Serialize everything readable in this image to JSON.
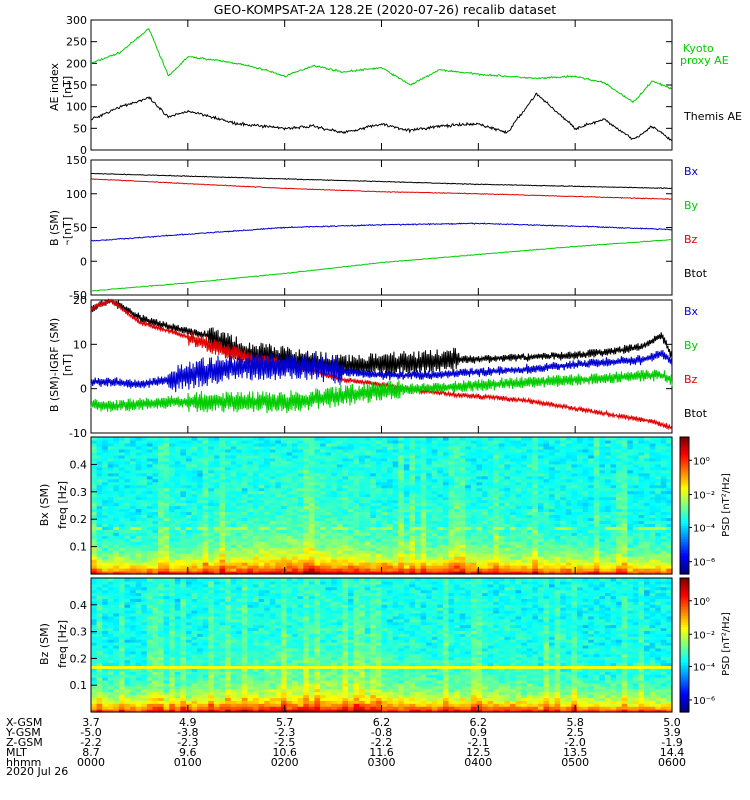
{
  "title": "GEO-KOMPSAT-2A 128.2E (2020-07-26) recalib dataset",
  "colors": {
    "black": "#000000",
    "red": "#e00000",
    "blue": "#0000d0",
    "green": "#00cc00"
  },
  "chart_data": [
    {
      "type": "line",
      "id": "ae",
      "ylabel": "AE index",
      "yunits": "[nT]",
      "ylim": [
        0,
        300
      ],
      "yticks": [
        "0",
        "50",
        "100",
        "150",
        "200",
        "250",
        "300"
      ],
      "legend": [
        "Kyoto",
        "proxy AE",
        "Themis AE"
      ],
      "x_hours": [
        0,
        0.3,
        0.6,
        0.8,
        1.0,
        1.2,
        1.5,
        1.8,
        2.0,
        2.3,
        2.6,
        3.0,
        3.3,
        3.6,
        4.0,
        4.3,
        4.6,
        5.0,
        5.3,
        5.6,
        5.8,
        6.0
      ],
      "series": [
        {
          "name": "Kyoto proxy AE",
          "color": "green",
          "values": [
            200,
            225,
            280,
            170,
            215,
            210,
            200,
            185,
            170,
            195,
            180,
            190,
            150,
            185,
            175,
            170,
            165,
            170,
            155,
            110,
            160,
            140
          ]
        },
        {
          "name": "Themis AE",
          "color": "black",
          "values": [
            70,
            100,
            120,
            75,
            90,
            80,
            60,
            55,
            50,
            55,
            40,
            60,
            45,
            55,
            60,
            40,
            130,
            50,
            70,
            25,
            55,
            20
          ]
        }
      ]
    },
    {
      "type": "line",
      "id": "bsm",
      "ylabel": "B (SM)",
      "ysub": "r",
      "yunits": "[nT]",
      "ylim": [
        -50,
        150
      ],
      "yticks": [
        "-50",
        "0",
        "50",
        "100",
        "150"
      ],
      "legend": [
        "Bx",
        "By",
        "Bz",
        "Btot"
      ],
      "x_hours": [
        0,
        1,
        2,
        3,
        4,
        5,
        6
      ],
      "series": [
        {
          "name": "Btot",
          "color": "black",
          "values": [
            130,
            126,
            122,
            118,
            114,
            111,
            108
          ]
        },
        {
          "name": "Bz",
          "color": "red",
          "values": [
            122,
            115,
            108,
            103,
            100,
            96,
            92
          ]
        },
        {
          "name": "Bx",
          "color": "blue",
          "values": [
            30,
            40,
            50,
            54,
            56,
            52,
            47
          ]
        },
        {
          "name": "By",
          "color": "green",
          "values": [
            -44,
            -32,
            -18,
            -2,
            10,
            22,
            32
          ]
        }
      ]
    },
    {
      "type": "line",
      "id": "bresid",
      "ylabel": "B (SM)-IGRF (SM)",
      "yunits": "[nT]",
      "ylim": [
        -10,
        20
      ],
      "yticks": [
        "-10",
        "0",
        "10",
        "20"
      ],
      "legend": [
        "Bx",
        "By",
        "Bz",
        "Btot"
      ],
      "x_hours": [
        0,
        0.2,
        0.5,
        0.8,
        1.2,
        1.6,
        2.0,
        2.3,
        2.6,
        3.0,
        3.4,
        3.8,
        4.2,
        4.6,
        5.0,
        5.4,
        5.7,
        5.9,
        6.0
      ],
      "series": [
        {
          "name": "Btot",
          "color": "black",
          "values": [
            18,
            20,
            16,
            14,
            12,
            8,
            7,
            6,
            5,
            5.5,
            6,
            6.5,
            6.8,
            7.2,
            7.5,
            8.5,
            9.5,
            12,
            7
          ]
        },
        {
          "name": "Bz",
          "color": "red",
          "values": [
            18,
            20,
            15,
            13,
            10,
            7,
            5,
            4,
            2,
            1,
            -0.5,
            -1.5,
            -2,
            -3,
            -4.5,
            -6,
            -7,
            -8,
            -9
          ]
        },
        {
          "name": "Bx",
          "color": "blue",
          "values": [
            1.5,
            1.5,
            1,
            2,
            4,
            5,
            5,
            5,
            4,
            3,
            3,
            3.5,
            4,
            4.5,
            5.5,
            6,
            6.5,
            8,
            6
          ]
        },
        {
          "name": "By",
          "color": "green",
          "values": [
            -3.5,
            -4,
            -3.5,
            -3,
            -3,
            -3,
            -3,
            -2.5,
            -1.5,
            -0.5,
            0,
            0.5,
            1,
            1.5,
            2,
            2.5,
            3,
            3,
            2
          ]
        }
      ]
    },
    {
      "type": "heatmap",
      "id": "bxspec",
      "ylabel": "Bx (SM)",
      "ylabel2": "freq [Hz]",
      "ylim": [
        0,
        0.5
      ],
      "yticks": [
        "0.1",
        "0.2",
        "0.3",
        "0.4"
      ],
      "colorbar_label": "PSD [nT²/Hz]",
      "colorbar_ticks": [
        "10⁰",
        "10⁻²",
        "10⁻⁴",
        "10⁻⁶"
      ]
    },
    {
      "type": "heatmap",
      "id": "bzspec",
      "ylabel": "Bz (SM)",
      "ylabel2": "freq [Hz]",
      "ylim": [
        0,
        0.5
      ],
      "yticks": [
        "0.1",
        "0.2",
        "0.3",
        "0.4"
      ],
      "colorbar_label": "PSD [nT²/Hz]",
      "colorbar_ticks": [
        "10⁰",
        "10⁻²",
        "10⁻⁴",
        "10⁻⁶"
      ]
    }
  ],
  "ephemeris": {
    "row_labels": [
      "X-GSM",
      "Y-GSM",
      "Z-GSM",
      "MLT",
      "hhmm"
    ],
    "date": "2020 Jul 26",
    "columns": [
      [
        "3.7",
        "-5.0",
        "-2.2",
        "8.7",
        "0000"
      ],
      [
        "4.9",
        "-3.8",
        "-2.3",
        "9.6",
        "0100"
      ],
      [
        "5.7",
        "-2.3",
        "-2.5",
        "10.6",
        "0200"
      ],
      [
        "6.2",
        "-0.8",
        "-2.2",
        "11.6",
        "0300"
      ],
      [
        "6.2",
        "0.9",
        "-2.1",
        "12.5",
        "0400"
      ],
      [
        "5.8",
        "2.5",
        "-2.0",
        "13.5",
        "0500"
      ],
      [
        "5.0",
        "3.9",
        "-1.9",
        "14.4",
        "0600"
      ]
    ]
  }
}
